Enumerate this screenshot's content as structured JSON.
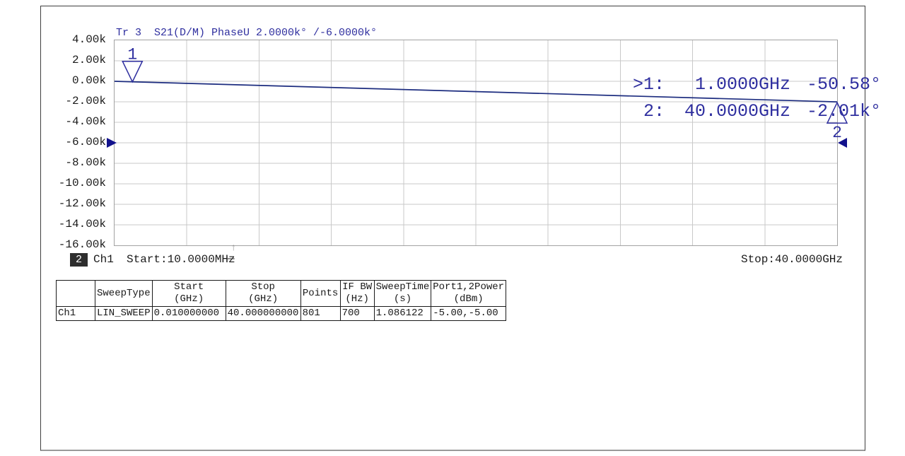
{
  "colors": {
    "accent_blue": "#2f2f9f",
    "trace": "#1c2c7f",
    "marker_fill": "#12128c",
    "grid": "#c9c9c9",
    "plot_border": "#a2a2a2"
  },
  "trace_header": {
    "label": "Tr 3  S21(D/M) PhaseU 2.0000k° /-6.0000k°"
  },
  "y_axis": {
    "labels": [
      "4.00k",
      "2.00k",
      "0.00k",
      "-2.00k",
      "-4.00k",
      "-6.00k",
      "-8.00k",
      "-10.00k",
      "-12.00k",
      "-14.00k",
      "-16.00k"
    ]
  },
  "marker_readout": {
    "rows": [
      {
        "label": ">1:",
        "freq": "1.0000GHz",
        "value": "-50.58°"
      },
      {
        "label": "2:",
        "freq": "40.0000GHz",
        "value": "-2.01k°"
      }
    ]
  },
  "status_bar": {
    "channel_badge": "2",
    "channel": "Ch1",
    "start": "Start:10.0000MHz",
    "sweep_indicator": "—",
    "trigger_arrow": "↑",
    "stop": "Stop:40.0000GHz"
  },
  "sweep_table": {
    "columns": [
      "",
      "SweepType",
      "Start\n(GHz)",
      "Stop\n(GHz)",
      "Points",
      "IF BW\n(Hz)",
      "SweepTime\n(s)",
      "Port1,2Power\n(dBm)"
    ],
    "rows": [
      {
        "cells": [
          "Ch1",
          "LIN_SWEEP",
          "0.010000000",
          "40.000000000",
          "801",
          "700",
          "1.086122",
          "-5.00,-5.00"
        ]
      }
    ]
  },
  "chart_data": {
    "type": "line",
    "title": "Tr 3  S21(D/M) PhaseU 2.0000k° /-6.0000k°",
    "trace": "Tr 3",
    "parameter": "S21(D/M)",
    "format": "PhaseU",
    "scale_per_div_deg": 2000,
    "ref_value_deg": -6000,
    "ylim": [
      -16000,
      4000
    ],
    "xlim_GHz": [
      0.01,
      40.0
    ],
    "x_divisions": 10,
    "y_divisions": 10,
    "grid": true,
    "xlabel_start": "Start:10.0000MHz",
    "xlabel_stop": "Stop:40.0000GHz",
    "series": [
      {
        "name": "S21 unwrapped phase",
        "points_GHz_deg": [
          [
            0.01,
            -0.5
          ],
          [
            40.0,
            -2010.0
          ]
        ]
      }
    ],
    "markers": [
      {
        "id": "1",
        "f_GHz": 1.0,
        "value_deg": -50.58,
        "symbol": "triangle-down",
        "active": true
      },
      {
        "id": "2",
        "f_GHz": 40.0,
        "value_deg": -2010.0,
        "symbol": "triangle-up",
        "active": false
      }
    ]
  }
}
